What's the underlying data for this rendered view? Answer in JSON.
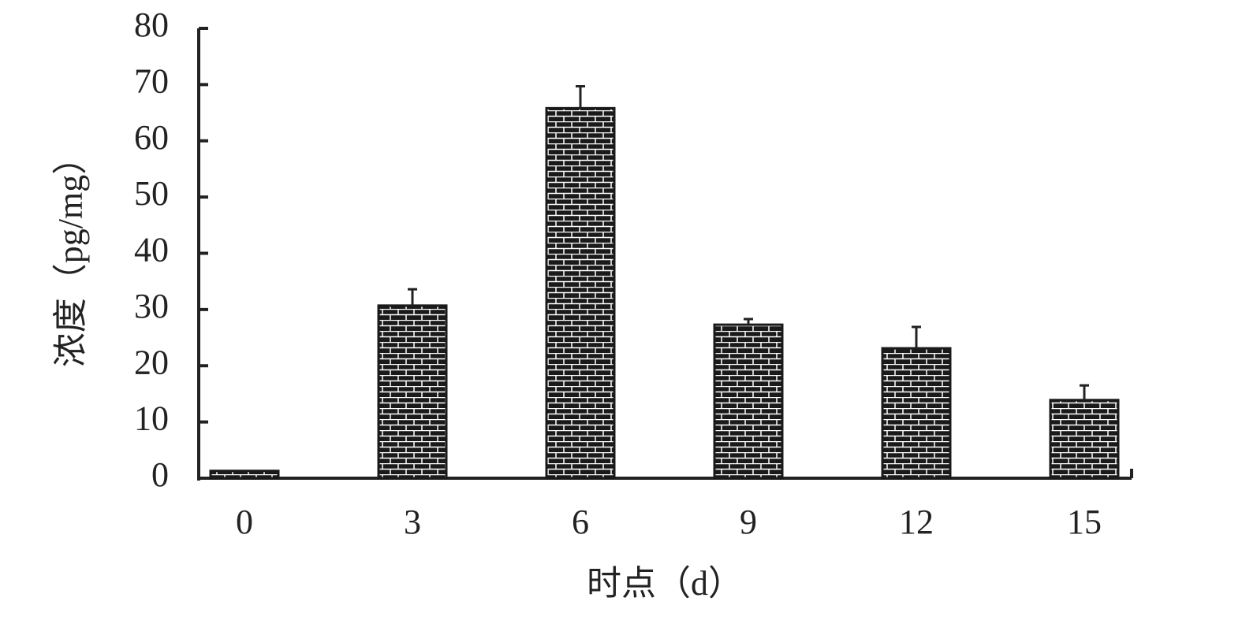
{
  "chart_data": {
    "type": "bar",
    "x_label": "时点（d）",
    "y_label": "浓度（pg/mg）",
    "categories": [
      "0",
      "3",
      "6",
      "9",
      "12",
      "15"
    ],
    "values": [
      1.3,
      30.7,
      65.8,
      27.3,
      23.1,
      13.9
    ],
    "errors": [
      null,
      2.9,
      3.9,
      1.0,
      3.8,
      2.6
    ],
    "color": "#1a1a1a",
    "ylim": [
      0,
      80
    ],
    "yticks": [
      0,
      10,
      20,
      30,
      40,
      50,
      60,
      70,
      80
    ],
    "grid": false
  }
}
